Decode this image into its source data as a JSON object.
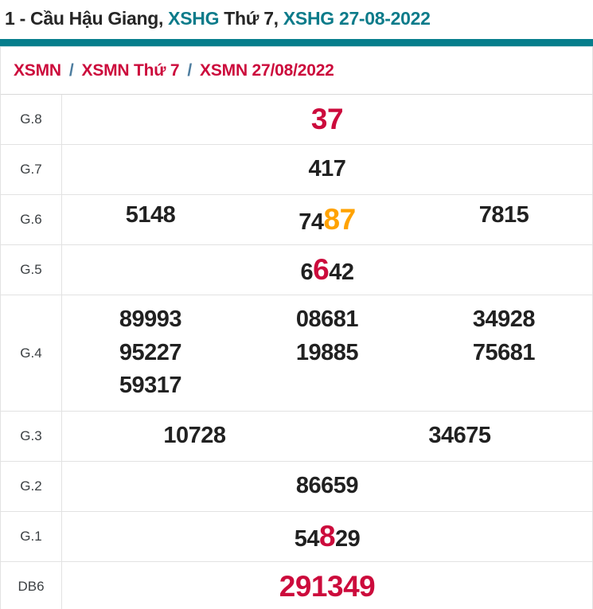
{
  "page_title": {
    "segments": [
      {
        "text": "1 - Cầu Hậu Giang, ",
        "style": "dark"
      },
      {
        "text": "XSHG",
        "style": "teal"
      },
      {
        "text": " Thứ 7, ",
        "style": "dark"
      },
      {
        "text": "XSHG 27-08-2022",
        "style": "teal"
      }
    ]
  },
  "breadcrumb": {
    "items": [
      {
        "label": "XSMN"
      },
      {
        "label": "XSMN Thứ 7"
      },
      {
        "label": "XSMN 27/08/2022"
      }
    ],
    "separator": "/"
  },
  "results_table": {
    "rows": [
      {
        "id": "g8",
        "label": "G.8",
        "columns": 1,
        "numbers": [
          {
            "segments": [
              {
                "text": "37",
                "style": "red-big"
              }
            ]
          }
        ]
      },
      {
        "id": "g7",
        "label": "G.7",
        "columns": 1,
        "numbers": [
          {
            "segments": [
              {
                "text": "417"
              }
            ]
          }
        ]
      },
      {
        "id": "g6",
        "label": "G.6",
        "columns": 3,
        "numbers": [
          {
            "segments": [
              {
                "text": "5148"
              }
            ]
          },
          {
            "segments": [
              {
                "text": "74"
              },
              {
                "text": "87",
                "style": "orange-big"
              }
            ]
          },
          {
            "segments": [
              {
                "text": "7815"
              }
            ]
          }
        ]
      },
      {
        "id": "g5",
        "label": "G.5",
        "columns": 1,
        "numbers": [
          {
            "segments": [
              {
                "text": "6"
              },
              {
                "text": "6",
                "style": "red-big"
              },
              {
                "text": "42"
              }
            ]
          }
        ]
      },
      {
        "id": "g4",
        "label": "G.4",
        "columns": 3,
        "numbers": [
          {
            "segments": [
              {
                "text": "89993"
              }
            ]
          },
          {
            "segments": [
              {
                "text": "08681"
              }
            ]
          },
          {
            "segments": [
              {
                "text": "34928"
              }
            ]
          },
          {
            "segments": [
              {
                "text": "95227"
              }
            ]
          },
          {
            "segments": [
              {
                "text": "19885"
              }
            ]
          },
          {
            "segments": [
              {
                "text": "75681"
              }
            ]
          },
          {
            "segments": [
              {
                "text": "59317"
              }
            ]
          }
        ]
      },
      {
        "id": "g3",
        "label": "G.3",
        "columns": 2,
        "numbers": [
          {
            "segments": [
              {
                "text": "10728"
              }
            ]
          },
          {
            "segments": [
              {
                "text": "34675"
              }
            ]
          }
        ]
      },
      {
        "id": "g2",
        "label": "G.2",
        "columns": 1,
        "numbers": [
          {
            "segments": [
              {
                "text": "86659"
              }
            ]
          }
        ]
      },
      {
        "id": "g1",
        "label": "G.1",
        "columns": 1,
        "numbers": [
          {
            "segments": [
              {
                "text": "54"
              },
              {
                "text": "8",
                "style": "red-big"
              },
              {
                "text": "29"
              }
            ]
          }
        ]
      },
      {
        "id": "db6",
        "label": "DB6",
        "columns": 1,
        "numbers": [
          {
            "segments": [
              {
                "text": "291349",
                "style": "red-big"
              }
            ]
          }
        ]
      }
    ]
  },
  "colors": {
    "teal_accent": "#067e8c",
    "teal_text": "#0c7b8a",
    "highlight_red": "#cc0b3c",
    "highlight_orange": "#ffa200",
    "number_text": "#212121",
    "breadcrumb_separator": "#4d7d9f",
    "border": "#e2e2e2"
  }
}
